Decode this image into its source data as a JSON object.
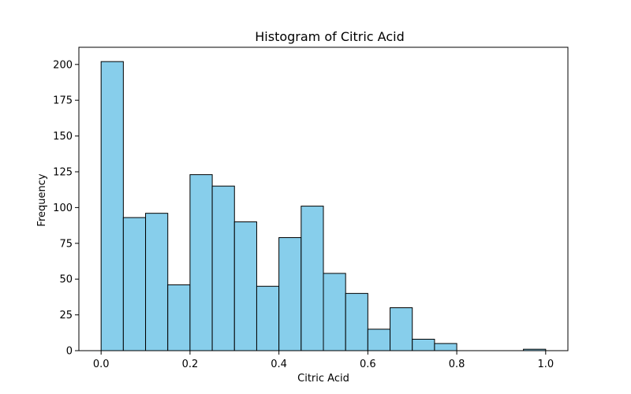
{
  "chart_data": {
    "type": "bar",
    "title": "Histogram of Citric Acid",
    "xlabel": "Citric Acid",
    "ylabel": "Frequency",
    "bin_edges": [
      0.0,
      0.05,
      0.1,
      0.15,
      0.2,
      0.25,
      0.3,
      0.35,
      0.4,
      0.45,
      0.5,
      0.55,
      0.6,
      0.65,
      0.7,
      0.75,
      0.8,
      0.85,
      0.9,
      0.95,
      1.0
    ],
    "values": [
      202,
      93,
      96,
      46,
      123,
      115,
      90,
      45,
      79,
      101,
      54,
      40,
      15,
      30,
      8,
      5,
      0,
      0,
      0,
      1
    ],
    "xlim": [
      -0.05,
      1.05
    ],
    "ylim": [
      0,
      212
    ],
    "xticks": [
      "0.0",
      "0.2",
      "0.4",
      "0.6",
      "0.8",
      "1.0"
    ],
    "yticks": [
      "0",
      "25",
      "50",
      "75",
      "100",
      "125",
      "150",
      "175",
      "200"
    ],
    "bar_color": "#87ceeb",
    "edge_color": "#000000",
    "grid": false
  }
}
